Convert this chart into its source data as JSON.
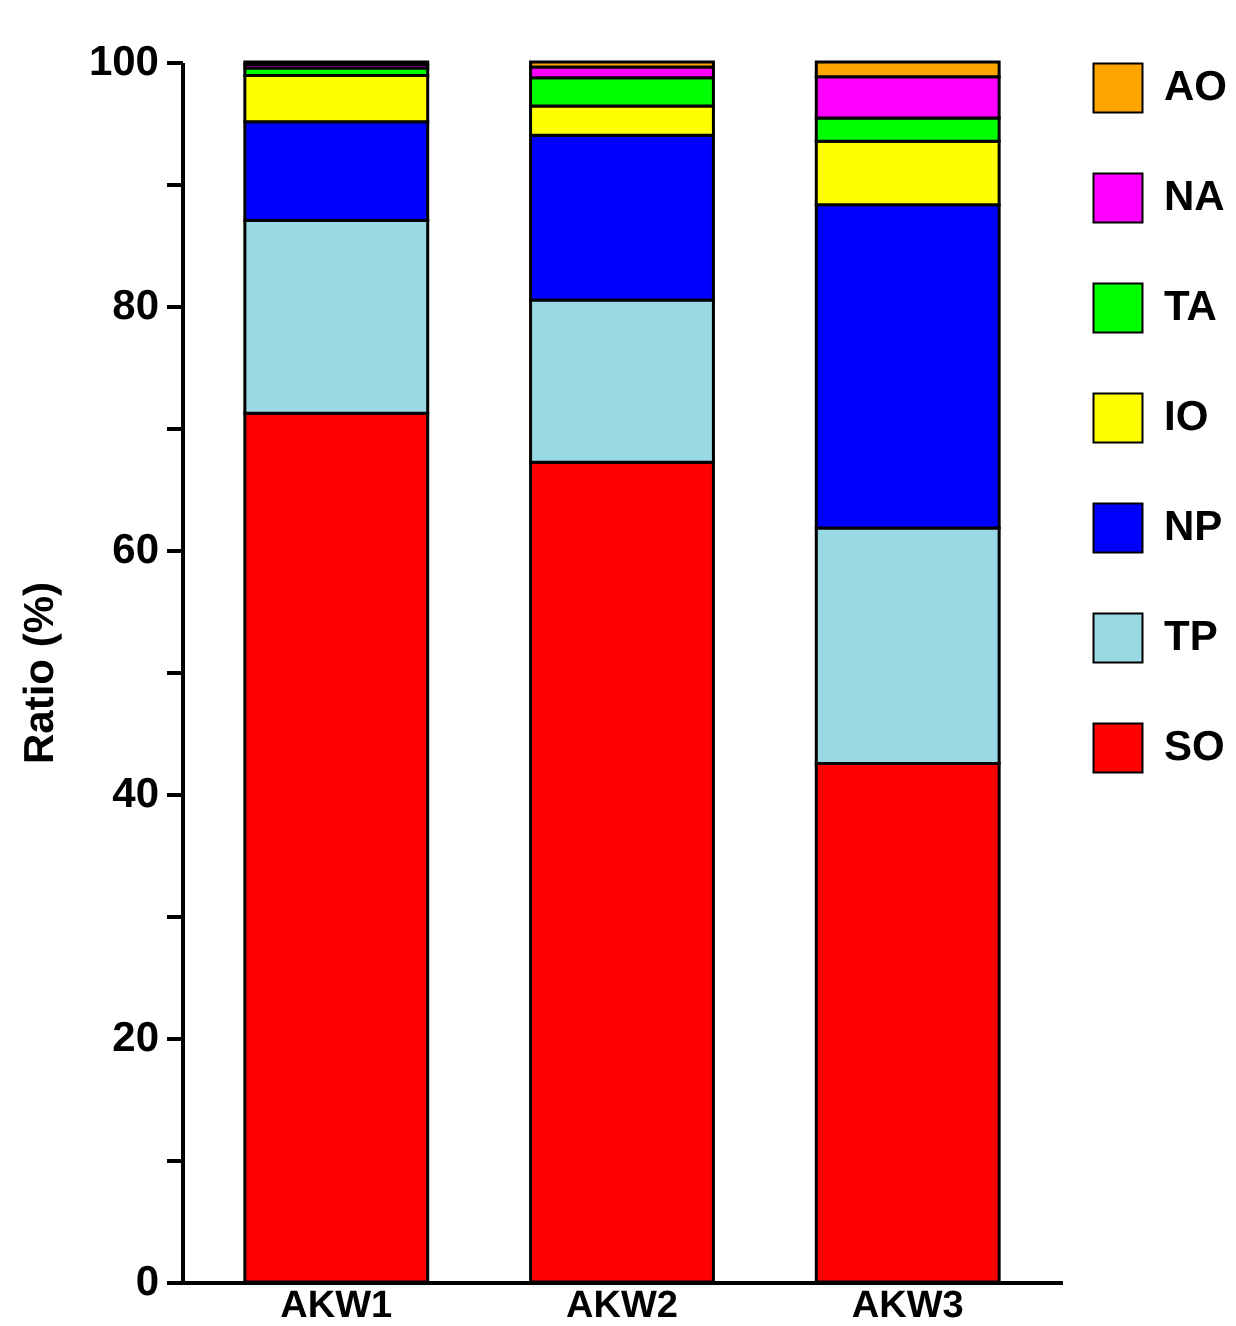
{
  "chart_data": {
    "type": "bar",
    "stacked": true,
    "ylabel": "Ratio (%)",
    "categories": [
      "AKW1",
      "AKW2",
      "AKW3"
    ],
    "series": [
      {
        "name": "SO",
        "color": "#ff0000",
        "values": [
          71.2,
          67.2,
          42.5
        ]
      },
      {
        "name": "TP",
        "color": "#99d9e4",
        "values": [
          15.8,
          13.3,
          19.3
        ]
      },
      {
        "name": "NP",
        "color": "#0000ff",
        "values": [
          8.1,
          13.5,
          26.5
        ]
      },
      {
        "name": "IO",
        "color": "#ffff00",
        "values": [
          3.8,
          2.4,
          5.2
        ]
      },
      {
        "name": "TA",
        "color": "#00ff00",
        "values": [
          0.6,
          2.3,
          1.9
        ]
      },
      {
        "name": "NA",
        "color": "#ff00ff",
        "values": [
          0.3,
          0.9,
          3.4
        ]
      },
      {
        "name": "AO",
        "color": "#ffa500",
        "values": [
          0.2,
          0.4,
          1.2
        ]
      }
    ],
    "ylim": [
      0,
      100
    ],
    "yticks": [
      0,
      {
        "value": 10,
        "label": null
      },
      20,
      {
        "value": 30,
        "label": null
      },
      40,
      {
        "value": 50,
        "label": null
      },
      60,
      {
        "value": 70,
        "label": null
      },
      80,
      {
        "value": 90,
        "label": null
      },
      100
    ],
    "grid": false,
    "legend": "right"
  }
}
